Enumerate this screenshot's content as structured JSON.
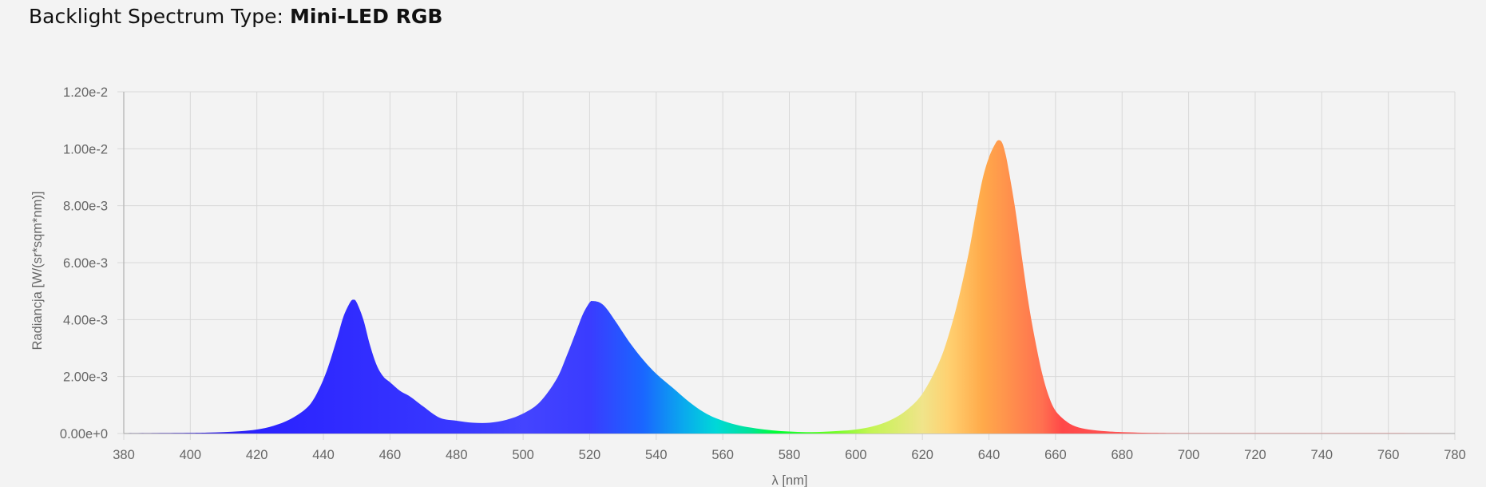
{
  "header": {
    "prefix": "Backlight Spectrum Type: ",
    "value": "Mini-LED RGB"
  },
  "chart_data": {
    "type": "area",
    "title": "",
    "xlabel": "λ [nm]",
    "ylabel": "Radiancja [W/(sr*sqm*nm)]",
    "xlim": [
      380,
      780
    ],
    "ylim": [
      0,
      0.012
    ],
    "grid": true,
    "x_ticks": [
      "380",
      "400",
      "420",
      "440",
      "460",
      "480",
      "500",
      "520",
      "540",
      "560",
      "580",
      "600",
      "620",
      "640",
      "660",
      "680",
      "700",
      "720",
      "740",
      "760",
      "780"
    ],
    "y_ticks": [
      "0.00e+0",
      "2.00e-3",
      "4.00e-3",
      "6.00e-3",
      "8.00e-3",
      "1.00e-2",
      "1.20e-2"
    ],
    "fill": "spectral wavelength gradient",
    "series": [
      {
        "x": [
          380,
          390,
          400,
          405,
          410,
          415,
          420,
          425,
          430,
          435,
          438,
          441,
          444,
          446,
          448,
          449,
          450,
          452,
          454,
          456,
          458,
          460,
          463,
          466,
          470,
          475,
          480,
          485,
          490,
          495,
          500,
          505,
          510,
          513,
          516,
          518,
          520,
          521,
          523,
          525,
          528,
          532,
          536,
          540,
          545,
          550,
          555,
          560,
          565,
          570,
          575,
          580,
          585,
          590,
          595,
          600,
          605,
          610,
          615,
          620,
          625,
          628,
          631,
          634,
          636,
          638,
          640,
          642,
          643,
          644,
          645,
          646,
          648,
          650,
          652,
          654,
          656,
          658,
          660,
          663,
          666,
          670,
          675,
          680,
          690,
          700,
          720,
          740,
          760,
          780
        ],
        "y": [
          0.0,
          1e-05,
          2e-05,
          3e-05,
          5e-05,
          8e-05,
          0.00014,
          0.00027,
          0.0005,
          0.0009,
          0.0014,
          0.0022,
          0.0033,
          0.0041,
          0.0046,
          0.0047,
          0.0046,
          0.004,
          0.0031,
          0.0024,
          0.002,
          0.0018,
          0.0015,
          0.0013,
          0.00095,
          0.00055,
          0.00045,
          0.00038,
          0.00038,
          0.00048,
          0.0007,
          0.0011,
          0.0019,
          0.0027,
          0.0036,
          0.0042,
          0.0046,
          0.00465,
          0.0046,
          0.0044,
          0.0039,
          0.0032,
          0.0026,
          0.0021,
          0.0016,
          0.0011,
          0.0007,
          0.00045,
          0.00028,
          0.00018,
          0.00011,
          7e-05,
          5e-05,
          6e-05,
          9e-05,
          0.00014,
          0.00025,
          0.00045,
          0.0008,
          0.0014,
          0.0025,
          0.0035,
          0.0048,
          0.0064,
          0.0077,
          0.0089,
          0.0097,
          0.0102,
          0.0103,
          0.0102,
          0.0098,
          0.0092,
          0.0078,
          0.0061,
          0.0045,
          0.0032,
          0.0021,
          0.0013,
          0.0008,
          0.00045,
          0.00025,
          0.00014,
          8e-05,
          5e-05,
          2e-05,
          1e-05,
          1e-05,
          1e-05,
          1e-05,
          0.0
        ]
      }
    ]
  }
}
